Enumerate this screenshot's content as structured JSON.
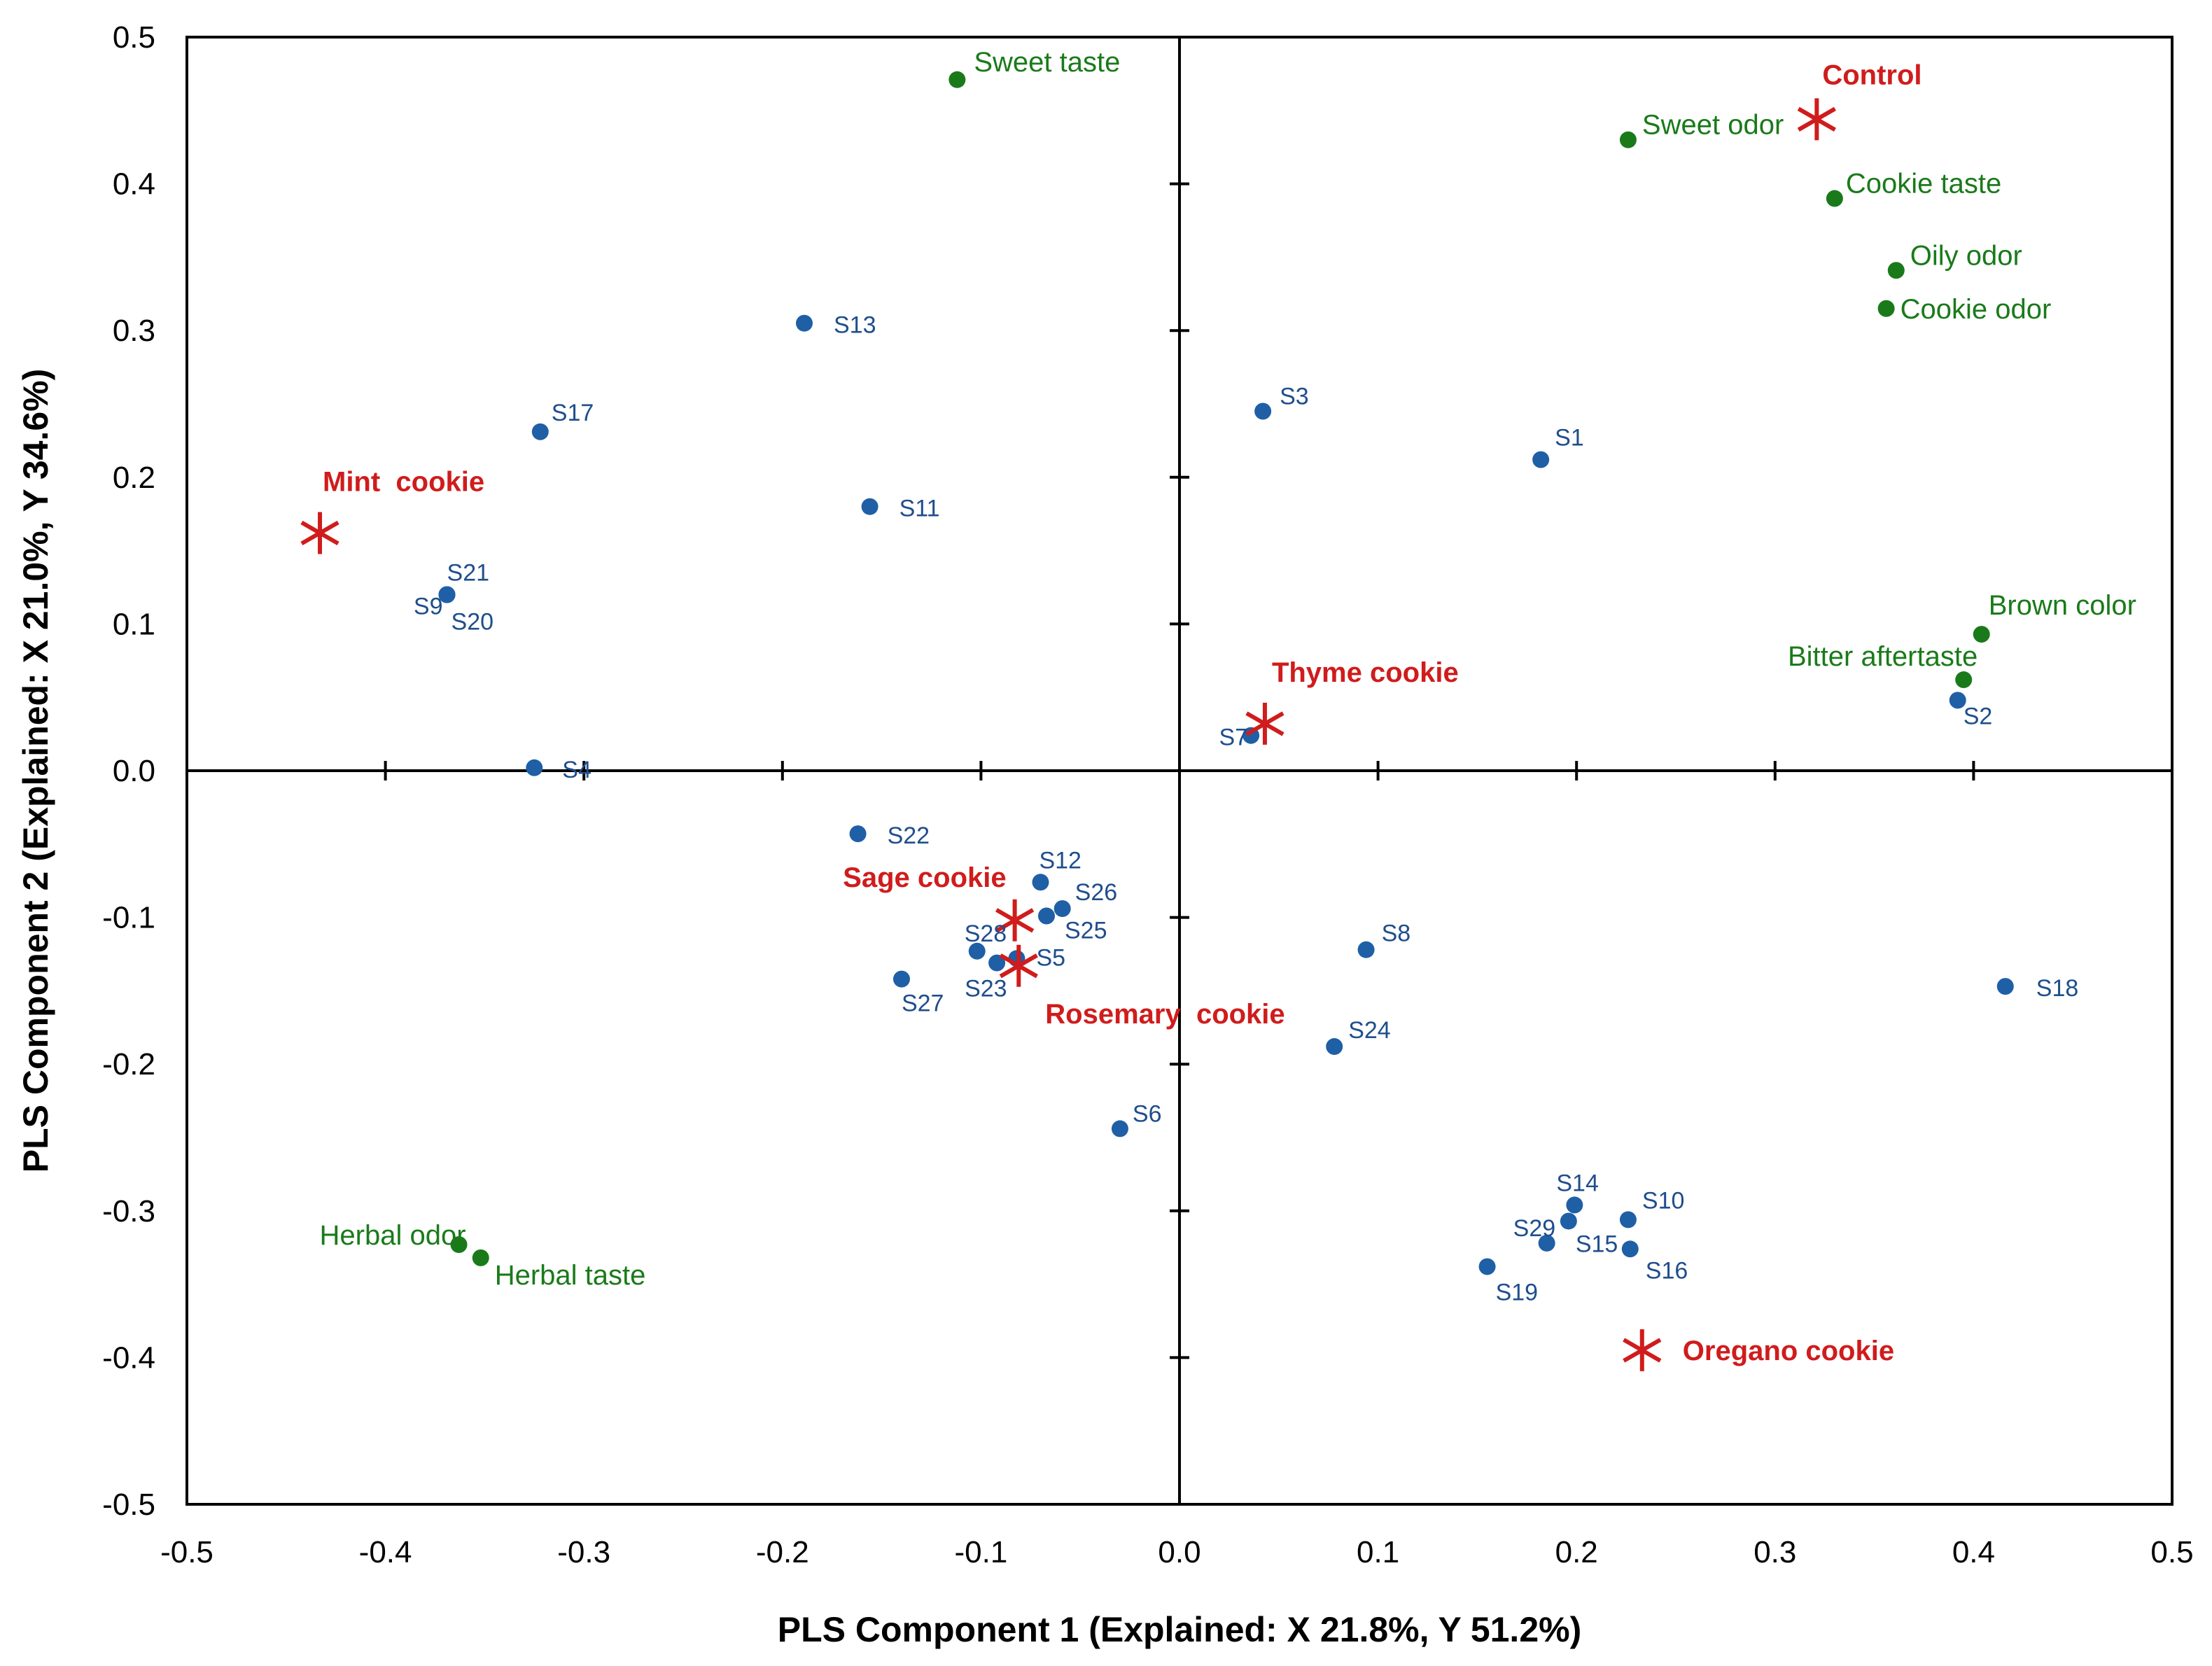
{
  "chart_data": {
    "type": "scatter",
    "xlabel": "PLS Component 1 (Explained: X 21.8%, Y 51.2%)",
    "ylabel": "PLS Component 2 (Explained: X 21.0%, Y 34.6%)",
    "xlim": [
      -0.5,
      0.5
    ],
    "ylim": [
      -0.5,
      0.5
    ],
    "x_ticks": [
      "-0.5",
      "-0.4",
      "-0.3",
      "-0.2",
      "-0.1",
      "0.0",
      "0.1",
      "0.2",
      "0.3",
      "0.4",
      "0.5"
    ],
    "y_ticks": [
      "-0.5",
      "-0.4",
      "-0.3",
      "-0.2",
      "-0.1",
      "0.0",
      "0.1",
      "0.2",
      "0.3",
      "0.4",
      "0.5"
    ],
    "grid": false,
    "colors": {
      "subject": "#1f5fa6",
      "attribute": "#1a7a1a",
      "product": "#d01c1c"
    },
    "series": [
      {
        "marker": "circle",
        "color": "#1f5fa6",
        "points": [
          {
            "label": "S1",
            "x": 0.182,
            "y": 0.212
          },
          {
            "label": "S2",
            "x": 0.392,
            "y": 0.048
          },
          {
            "label": "S3",
            "x": 0.042,
            "y": 0.245
          },
          {
            "label": "S4",
            "x": -0.325,
            "y": 0.002
          },
          {
            "label": "S5",
            "x": -0.082,
            "y": -0.128
          },
          {
            "label": "S6",
            "x": -0.03,
            "y": -0.244
          },
          {
            "label": "S7",
            "x": 0.036,
            "y": 0.024
          },
          {
            "label": "S8",
            "x": 0.094,
            "y": -0.122
          },
          {
            "label": "S9",
            "x": -0.369,
            "y": 0.12
          },
          {
            "label": "S10",
            "x": 0.226,
            "y": -0.306
          },
          {
            "label": "S11",
            "x": -0.156,
            "y": 0.18
          },
          {
            "label": "S12",
            "x": -0.07,
            "y": -0.076
          },
          {
            "label": "S13",
            "x": -0.189,
            "y": 0.305
          },
          {
            "label": "S14",
            "x": 0.199,
            "y": -0.296
          },
          {
            "label": "S15",
            "x": 0.196,
            "y": -0.307
          },
          {
            "label": "S16",
            "x": 0.227,
            "y": -0.326
          },
          {
            "label": "S17",
            "x": -0.322,
            "y": 0.231
          },
          {
            "label": "S18",
            "x": 0.416,
            "y": -0.147
          },
          {
            "label": "S19",
            "x": 0.155,
            "y": -0.338
          },
          {
            "label": "S20",
            "x": -0.369,
            "y": 0.12
          },
          {
            "label": "S21",
            "x": -0.369,
            "y": 0.12
          },
          {
            "label": "S22",
            "x": -0.162,
            "y": -0.043
          },
          {
            "label": "S23",
            "x": -0.092,
            "y": -0.131
          },
          {
            "label": "S24",
            "x": 0.078,
            "y": -0.188
          },
          {
            "label": "S25",
            "x": -0.067,
            "y": -0.099
          },
          {
            "label": "S26",
            "x": -0.059,
            "y": -0.094
          },
          {
            "label": "S27",
            "x": -0.14,
            "y": -0.142
          },
          {
            "label": "S28",
            "x": -0.102,
            "y": -0.123
          },
          {
            "label": "S29",
            "x": 0.185,
            "y": -0.322
          }
        ]
      },
      {
        "marker": "circle",
        "color": "#1a7a1a",
        "points": [
          {
            "label": "Sweet taste",
            "x": -0.112,
            "y": 0.471
          },
          {
            "label": "Sweet odor",
            "x": 0.226,
            "y": 0.43
          },
          {
            "label": "Cookie taste",
            "x": 0.33,
            "y": 0.39
          },
          {
            "label": "Oily odor",
            "x": 0.361,
            "y": 0.341
          },
          {
            "label": "Cookie odor",
            "x": 0.356,
            "y": 0.315
          },
          {
            "label": "Brown color",
            "x": 0.404,
            "y": 0.093
          },
          {
            "label": "Bitter aftertaste",
            "x": 0.395,
            "y": 0.062
          },
          {
            "label": "Herbal odor",
            "x": -0.363,
            "y": -0.323
          },
          {
            "label": "Herbal taste",
            "x": -0.352,
            "y": -0.332
          }
        ]
      },
      {
        "marker": "star",
        "color": "#d01c1c",
        "points": [
          {
            "label": "Control",
            "x": 0.321,
            "y": 0.444
          },
          {
            "label": "Mint  cookie",
            "x": -0.433,
            "y": 0.162
          },
          {
            "label": "Thyme cookie",
            "x": 0.043,
            "y": 0.032
          },
          {
            "label": "Sage cookie",
            "x": -0.083,
            "y": -0.102
          },
          {
            "label": "Rosemary  cookie",
            "x": -0.081,
            "y": -0.133
          },
          {
            "label": "Oregano cookie",
            "x": 0.233,
            "y": -0.395
          }
        ]
      }
    ]
  }
}
